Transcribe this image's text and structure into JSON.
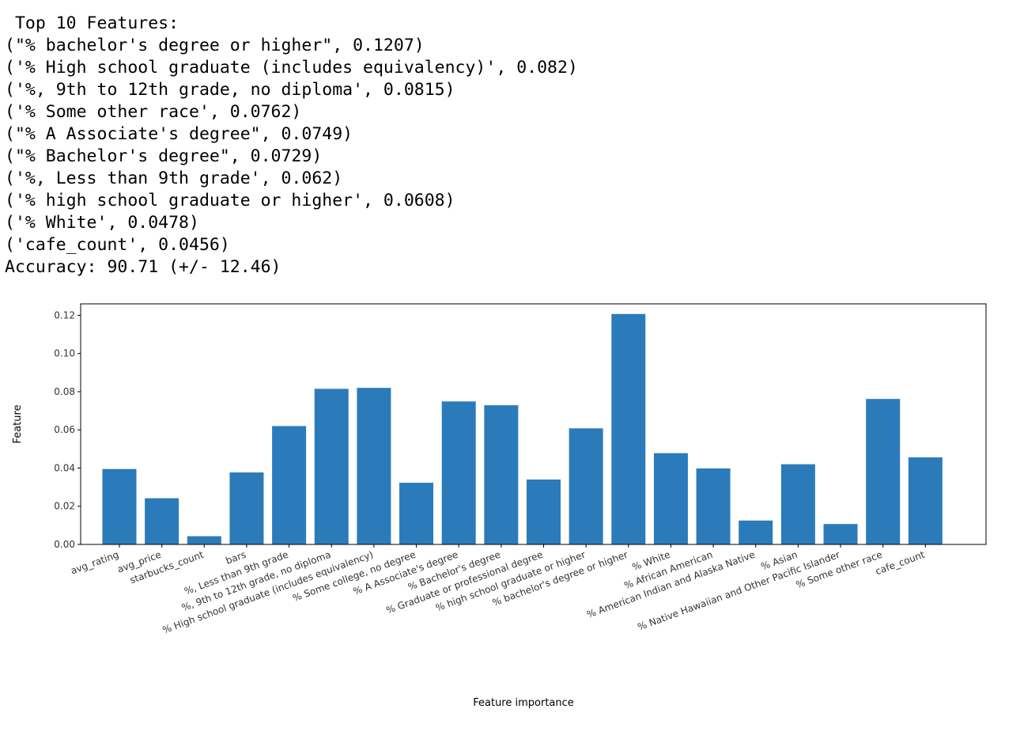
{
  "output": {
    "header": " Top 10 Features:",
    "lines": [
      "(\"% bachelor's degree or higher\", 0.1207)",
      "('% High school graduate (includes equivalency)', 0.082)",
      "('%, 9th to 12th grade, no diploma', 0.0815)",
      "('% Some other race', 0.0762)",
      "(\"% A Associate's degree\", 0.0749)",
      "(\"% Bachelor's degree\", 0.0729)",
      "('%, Less than 9th grade', 0.062)",
      "('% high school graduate or higher', 0.0608)",
      "('% White', 0.0478)",
      "('cafe_count', 0.0456)"
    ],
    "accuracy": "Accuracy: 90.71 (+/- 12.46)"
  },
  "chart_data": {
    "type": "bar",
    "title": "",
    "xlabel": "Feature importance",
    "ylabel": "Feature",
    "ylim": [
      0,
      0.126
    ],
    "yticks": [
      0.0,
      0.02,
      0.04,
      0.06,
      0.08,
      0.1,
      0.12
    ],
    "ytick_labels": [
      "0.00",
      "0.02",
      "0.04",
      "0.06",
      "0.08",
      "0.10",
      "0.12"
    ],
    "bar_color": "#2b7bba",
    "categories": [
      "avg_rating",
      "avg_price",
      "starbucks_count",
      "bars",
      "%, Less than 9th grade",
      "%, 9th to 12th grade, no diploma",
      "% High school graduate (includes equivalency)",
      "% Some college, no degree",
      "% A Associate's degree",
      "% Bachelor's degree",
      "% Graduate or professional degree",
      "% high school graduate or higher",
      "% bachelor's degree or higher",
      "% White",
      "% African American",
      "% American Indian and Alaska Native",
      "% Asian",
      "% Native Hawaiian and Other Pacific Islander",
      "% Some other race",
      "cafe_count"
    ],
    "values": [
      0.0395,
      0.0242,
      0.0043,
      0.0377,
      0.062,
      0.0815,
      0.082,
      0.0323,
      0.0749,
      0.0729,
      0.034,
      0.0608,
      0.1207,
      0.0478,
      0.0398,
      0.0125,
      0.042,
      0.0107,
      0.0762,
      0.0456
    ]
  }
}
